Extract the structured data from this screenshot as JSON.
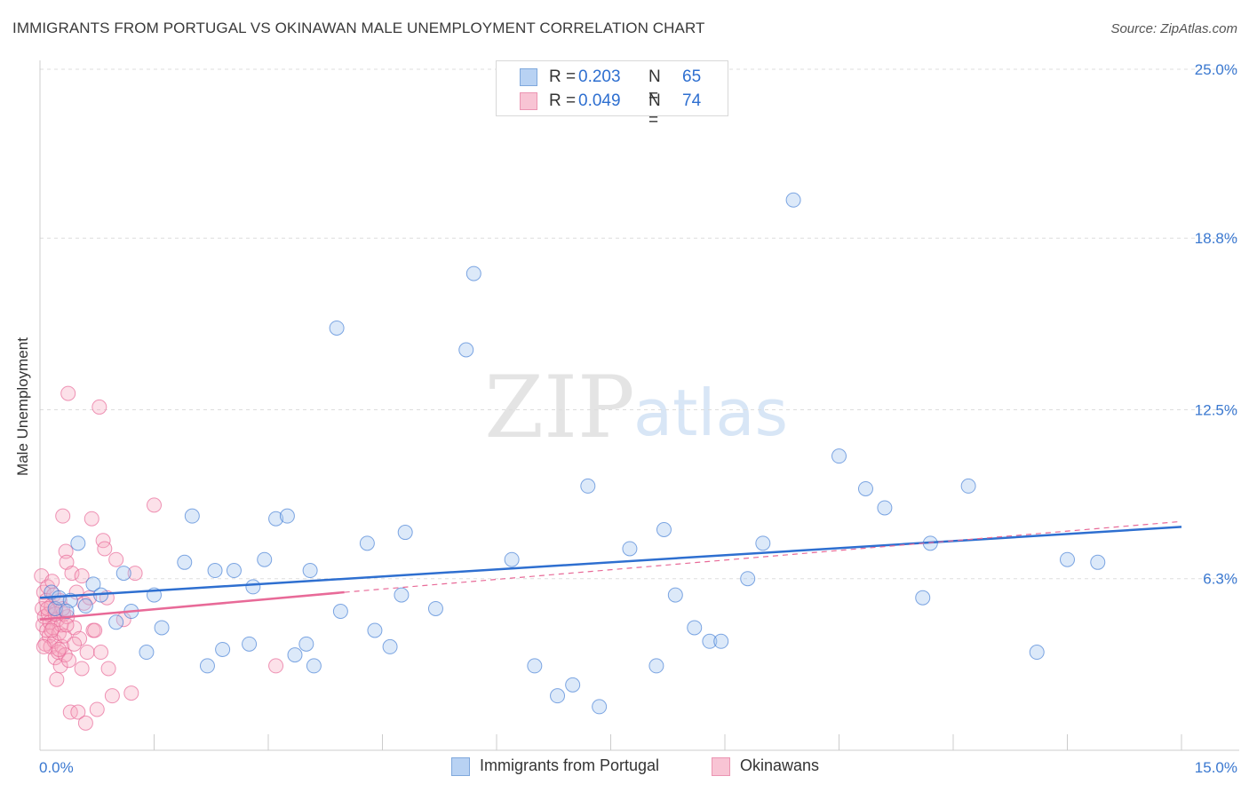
{
  "title": "IMMIGRANTS FROM PORTUGAL VS OKINAWAN MALE UNEMPLOYMENT CORRELATION CHART",
  "source": "Source: ZipAtlas.com",
  "watermark": {
    "zip": "ZIP",
    "atlas": "atlas"
  },
  "colors": {
    "blue": "#a8c8f0",
    "blue_line": "#2e6fd0",
    "pink": "#f5a8c0",
    "pink_line": "#e86a98",
    "tick_text": "#3a78d0",
    "grid": "#dddddd"
  },
  "legend": {
    "rows": [
      {
        "r_label": "R =",
        "r_value": "0.203",
        "n_label": "N =",
        "n_value": "65"
      },
      {
        "r_label": "R =",
        "r_value": "0.049",
        "n_label": "N =",
        "n_value": "74"
      }
    ]
  },
  "chart_data": {
    "type": "scatter",
    "title": "IMMIGRANTS FROM PORTUGAL VS OKINAWAN MALE UNEMPLOYMENT CORRELATION CHART",
    "xlabel": "",
    "ylabel": "Male Unemployment",
    "xlim": [
      0,
      15
    ],
    "ylim": [
      0,
      25
    ],
    "x_tick_labels": [
      "0.0%",
      "15.0%"
    ],
    "y_ticks": [
      6.3,
      12.5,
      18.8,
      25.0
    ],
    "y_tick_labels": [
      "6.3%",
      "12.5%",
      "18.8%",
      "25.0%"
    ],
    "grid": true,
    "legend_position": "top-center",
    "series": [
      {
        "name": "Immigrants from Portugal",
        "trend": [
          [
            0,
            5.6
          ],
          [
            15,
            8.2
          ]
        ],
        "points": [
          [
            0.15,
            5.8
          ],
          [
            0.2,
            5.2
          ],
          [
            0.25,
            5.6
          ],
          [
            0.4,
            5.5
          ],
          [
            0.5,
            7.6
          ],
          [
            0.6,
            5.3
          ],
          [
            0.7,
            6.1
          ],
          [
            0.8,
            5.7
          ],
          [
            1.0,
            4.7
          ],
          [
            1.1,
            6.5
          ],
          [
            1.2,
            5.1
          ],
          [
            1.4,
            3.6
          ],
          [
            1.5,
            5.7
          ],
          [
            1.6,
            4.5
          ],
          [
            1.9,
            6.9
          ],
          [
            2.0,
            8.6
          ],
          [
            2.2,
            3.1
          ],
          [
            2.3,
            6.6
          ],
          [
            2.4,
            3.7
          ],
          [
            2.55,
            6.6
          ],
          [
            2.75,
            3.9
          ],
          [
            2.8,
            6.0
          ],
          [
            2.95,
            7.0
          ],
          [
            3.1,
            8.5
          ],
          [
            3.25,
            8.6
          ],
          [
            3.35,
            3.5
          ],
          [
            3.5,
            3.9
          ],
          [
            3.55,
            6.6
          ],
          [
            3.6,
            3.1
          ],
          [
            3.9,
            15.5
          ],
          [
            3.95,
            5.1
          ],
          [
            4.3,
            7.6
          ],
          [
            4.4,
            4.4
          ],
          [
            4.6,
            3.8
          ],
          [
            4.75,
            5.7
          ],
          [
            4.8,
            8.0
          ],
          [
            5.2,
            5.2
          ],
          [
            5.6,
            14.7
          ],
          [
            5.7,
            17.5
          ],
          [
            6.2,
            7.0
          ],
          [
            6.5,
            3.1
          ],
          [
            6.8,
            2.0
          ],
          [
            7.0,
            2.4
          ],
          [
            7.2,
            9.7
          ],
          [
            7.35,
            1.6
          ],
          [
            7.75,
            7.4
          ],
          [
            8.1,
            3.1
          ],
          [
            8.2,
            8.1
          ],
          [
            8.35,
            5.7
          ],
          [
            8.6,
            4.5
          ],
          [
            8.8,
            4.0
          ],
          [
            8.95,
            4.0
          ],
          [
            9.3,
            6.3
          ],
          [
            9.5,
            7.6
          ],
          [
            9.9,
            20.2
          ],
          [
            10.5,
            10.8
          ],
          [
            10.85,
            9.6
          ],
          [
            11.1,
            8.9
          ],
          [
            11.6,
            5.6
          ],
          [
            11.7,
            7.6
          ],
          [
            12.2,
            9.7
          ],
          [
            13.1,
            3.6
          ],
          [
            13.5,
            7.0
          ],
          [
            13.9,
            6.9
          ],
          [
            0.35,
            5.1
          ]
        ]
      },
      {
        "name": "Okinawans",
        "trend": [
          [
            0,
            4.8
          ],
          [
            4.0,
            5.8
          ]
        ],
        "trend_dashed": [
          [
            4.0,
            5.8
          ],
          [
            15,
            8.4
          ]
        ],
        "points": [
          [
            0.02,
            6.4
          ],
          [
            0.03,
            5.2
          ],
          [
            0.04,
            4.6
          ],
          [
            0.05,
            5.8
          ],
          [
            0.06,
            4.9
          ],
          [
            0.07,
            3.9
          ],
          [
            0.08,
            5.5
          ],
          [
            0.09,
            4.4
          ],
          [
            0.1,
            6.0
          ],
          [
            0.11,
            5.0
          ],
          [
            0.12,
            4.2
          ],
          [
            0.13,
            4.7
          ],
          [
            0.14,
            3.8
          ],
          [
            0.15,
            5.3
          ],
          [
            0.16,
            6.2
          ],
          [
            0.17,
            4.5
          ],
          [
            0.18,
            5.7
          ],
          [
            0.19,
            4.0
          ],
          [
            0.2,
            3.4
          ],
          [
            0.21,
            5.1
          ],
          [
            0.22,
            2.6
          ],
          [
            0.23,
            4.8
          ],
          [
            0.24,
            3.6
          ],
          [
            0.25,
            4.3
          ],
          [
            0.26,
            5.5
          ],
          [
            0.27,
            3.1
          ],
          [
            0.28,
            4.6
          ],
          [
            0.29,
            3.8
          ],
          [
            0.3,
            8.6
          ],
          [
            0.31,
            5.0
          ],
          [
            0.32,
            4.2
          ],
          [
            0.33,
            3.5
          ],
          [
            0.34,
            7.3
          ],
          [
            0.35,
            6.9
          ],
          [
            0.36,
            4.9
          ],
          [
            0.37,
            13.1
          ],
          [
            0.38,
            3.3
          ],
          [
            0.4,
            1.4
          ],
          [
            0.42,
            6.5
          ],
          [
            0.45,
            4.5
          ],
          [
            0.48,
            5.8
          ],
          [
            0.5,
            1.4
          ],
          [
            0.52,
            4.1
          ],
          [
            0.55,
            3.0
          ],
          [
            0.58,
            5.4
          ],
          [
            0.6,
            1.0
          ],
          [
            0.62,
            3.6
          ],
          [
            0.65,
            5.6
          ],
          [
            0.68,
            8.5
          ],
          [
            0.7,
            4.4
          ],
          [
            0.72,
            4.4
          ],
          [
            0.75,
            1.5
          ],
          [
            0.78,
            12.6
          ],
          [
            0.8,
            3.6
          ],
          [
            0.83,
            7.7
          ],
          [
            0.85,
            7.4
          ],
          [
            0.88,
            5.6
          ],
          [
            0.9,
            3.0
          ],
          [
            0.95,
            2.0
          ],
          [
            1.0,
            7.0
          ],
          [
            1.1,
            4.8
          ],
          [
            1.2,
            2.1
          ],
          [
            1.25,
            6.5
          ],
          [
            1.5,
            9.0
          ],
          [
            3.1,
            3.1
          ],
          [
            0.05,
            3.8
          ],
          [
            0.1,
            5.2
          ],
          [
            0.15,
            4.4
          ],
          [
            0.2,
            5.0
          ],
          [
            0.25,
            3.7
          ],
          [
            0.3,
            5.2
          ],
          [
            0.35,
            4.6
          ],
          [
            0.45,
            3.9
          ],
          [
            0.55,
            6.4
          ]
        ]
      }
    ]
  }
}
